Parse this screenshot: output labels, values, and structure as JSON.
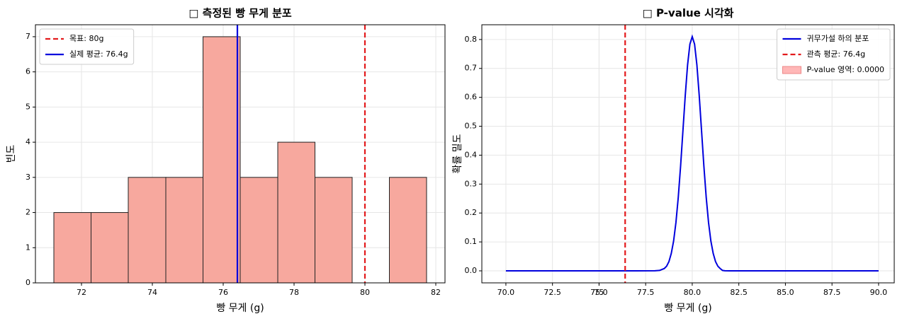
{
  "chart_data": [
    {
      "type": "histogram",
      "title": "□ 측정된 빵 무게 분포",
      "xlabel": "빵 무게 (g)",
      "ylabel": "빈도",
      "bins": [
        71.22,
        72.27,
        73.32,
        74.38,
        75.43,
        76.48,
        77.54,
        78.59,
        79.64,
        80.69,
        81.74
      ],
      "values": [
        2,
        2,
        3,
        3,
        7,
        3,
        4,
        3,
        0,
        3
      ],
      "color": "#f7a89e",
      "xlim": [
        70.7,
        82.26
      ],
      "ylim": [
        0,
        7.34
      ],
      "xticks": [
        72,
        74,
        76,
        78,
        80,
        82
      ],
      "yticks": [
        0,
        1,
        2,
        3,
        4,
        5,
        6,
        7
      ],
      "grid": true,
      "vlines": [
        {
          "x": 80,
          "color": "#e31a1c",
          "style": "dashed",
          "label": "목표: 80g"
        },
        {
          "x": 76.4,
          "color": "#0000dd",
          "style": "solid",
          "label": "실제 평균: 76.4g"
        }
      ],
      "legend": "upper left"
    },
    {
      "type": "line",
      "title": "□ P-value 시각화",
      "xlabel": "빵 무게 (g)",
      "ylabel": "확률 밀도",
      "x": [
        70,
        72,
        74,
        76,
        77,
        78,
        78.25,
        78.5,
        78.625,
        78.75,
        78.875,
        79,
        79.125,
        79.25,
        79.375,
        79.5,
        79.625,
        79.75,
        79.875,
        80,
        80.125,
        80.25,
        80.375,
        80.5,
        80.625,
        80.75,
        80.875,
        81,
        81.125,
        81.25,
        81.375,
        81.5,
        81.625,
        81.75,
        82,
        83,
        84,
        86,
        88,
        90
      ],
      "series": [
        {
          "name": "귀무가설 하의 분포",
          "color": "#0000dd",
          "values": [
            0,
            0,
            0,
            0,
            0,
            0.0002,
            0.0015,
            0.008,
            0.016,
            0.032,
            0.06,
            0.103,
            0.167,
            0.254,
            0.362,
            0.484,
            0.606,
            0.712,
            0.784,
            0.81,
            0.784,
            0.712,
            0.606,
            0.484,
            0.362,
            0.254,
            0.167,
            0.103,
            0.06,
            0.032,
            0.016,
            0.008,
            0.0015,
            0.0002,
            0,
            0,
            0,
            0,
            0,
            0
          ]
        }
      ],
      "vlines": [
        {
          "x": 76.4,
          "color": "#e31a1c",
          "style": "dashed",
          "label": "관측 평균: 76.4g"
        }
      ],
      "fill": {
        "label": "P-value 영역: 0.0000",
        "color": "#ff9999"
      },
      "xlim": [
        68.71,
        90.84
      ],
      "ylim": [
        -0.0416,
        0.851
      ],
      "xticks": [
        {
          "value": 70,
          "label": "70.0"
        },
        72.5,
        75,
        {
          "value": 75,
          "label": "75.0"
        },
        77.5,
        {
          "value": 80,
          "label": "80.0"
        },
        82.5,
        {
          "value": 85,
          "label": "85.0"
        },
        87.5,
        {
          "value": 90,
          "label": "90.0"
        }
      ],
      "yticks": [
        {
          "value": 0,
          "label": "0.0"
        },
        0.1,
        0.2,
        0.3,
        0.4,
        0.5,
        0.6,
        0.7,
        0.8
      ],
      "grid": true,
      "legend": "upper right"
    }
  ]
}
